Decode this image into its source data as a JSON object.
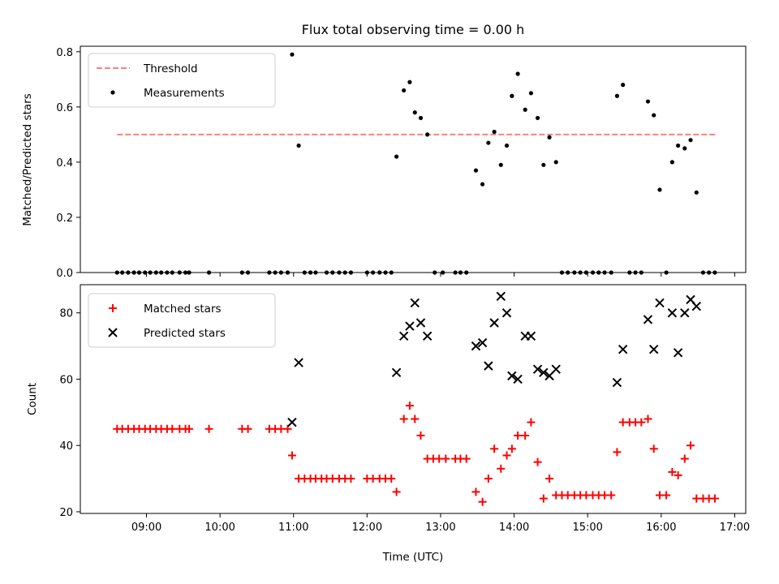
{
  "chart_data": [
    {
      "type": "scatter",
      "title": "Flux total observing time = 0.00 h",
      "xlabel": "",
      "ylabel": "Matched/Predicted stars",
      "ylim": [
        0,
        0.82
      ],
      "yticks": [
        "0.0",
        "0.2",
        "0.4",
        "0.6",
        "0.8"
      ],
      "xticks": [
        "09:00",
        "10:00",
        "11:00",
        "12:00",
        "13:00",
        "14:00",
        "15:00",
        "16:00",
        "17:00"
      ],
      "xlim_hours": [
        8.1,
        17.15
      ],
      "legend_position": "upper-left",
      "threshold": {
        "name": "Threshold",
        "value": 0.5,
        "x_start": 8.6,
        "x_end": 16.75,
        "color": "#ff7f7f"
      },
      "series": [
        {
          "name": "Measurements",
          "color": "#000000",
          "marker": "dot",
          "points": [
            [
              8.6,
              0
            ],
            [
              8.67,
              0
            ],
            [
              8.75,
              0
            ],
            [
              8.83,
              0
            ],
            [
              8.9,
              0
            ],
            [
              8.98,
              0
            ],
            [
              9.05,
              0
            ],
            [
              9.13,
              0
            ],
            [
              9.2,
              0
            ],
            [
              9.28,
              0
            ],
            [
              9.35,
              0
            ],
            [
              9.45,
              0
            ],
            [
              9.53,
              0
            ],
            [
              9.58,
              0
            ],
            [
              9.85,
              0
            ],
            [
              10.3,
              0
            ],
            [
              10.38,
              0
            ],
            [
              10.67,
              0
            ],
            [
              10.75,
              0
            ],
            [
              10.83,
              0
            ],
            [
              10.92,
              0
            ],
            [
              10.98,
              0.79
            ],
            [
              11.07,
              0.46
            ],
            [
              11.15,
              0
            ],
            [
              11.23,
              0
            ],
            [
              11.3,
              0
            ],
            [
              11.45,
              0
            ],
            [
              11.53,
              0
            ],
            [
              11.62,
              0
            ],
            [
              11.7,
              0
            ],
            [
              11.78,
              0
            ],
            [
              12.0,
              0
            ],
            [
              12.08,
              0
            ],
            [
              12.17,
              0
            ],
            [
              12.25,
              0
            ],
            [
              12.33,
              0
            ],
            [
              12.4,
              0.42
            ],
            [
              12.5,
              0.66
            ],
            [
              12.58,
              0.69
            ],
            [
              12.65,
              0.58
            ],
            [
              12.73,
              0.56
            ],
            [
              12.82,
              0.5
            ],
            [
              12.92,
              0
            ],
            [
              13.03,
              0
            ],
            [
              13.2,
              0
            ],
            [
              13.27,
              0
            ],
            [
              13.35,
              0
            ],
            [
              13.48,
              0.37
            ],
            [
              13.57,
              0.32
            ],
            [
              13.65,
              0.47
            ],
            [
              13.73,
              0.51
            ],
            [
              13.82,
              0.39
            ],
            [
              13.9,
              0.46
            ],
            [
              13.97,
              0.64
            ],
            [
              14.05,
              0.72
            ],
            [
              14.15,
              0.59
            ],
            [
              14.23,
              0.65
            ],
            [
              14.32,
              0.56
            ],
            [
              14.4,
              0.39
            ],
            [
              14.48,
              0.49
            ],
            [
              14.57,
              0.4
            ],
            [
              14.65,
              0
            ],
            [
              14.73,
              0
            ],
            [
              14.82,
              0
            ],
            [
              14.9,
              0
            ],
            [
              14.98,
              0
            ],
            [
              15.07,
              0
            ],
            [
              15.15,
              0
            ],
            [
              15.23,
              0
            ],
            [
              15.32,
              0
            ],
            [
              15.4,
              0.64
            ],
            [
              15.48,
              0.68
            ],
            [
              15.57,
              0
            ],
            [
              15.65,
              0
            ],
            [
              15.73,
              0
            ],
            [
              15.82,
              0.62
            ],
            [
              15.9,
              0.57
            ],
            [
              15.98,
              0.3
            ],
            [
              16.07,
              0
            ],
            [
              16.15,
              0.4
            ],
            [
              16.23,
              0.46
            ],
            [
              16.32,
              0.45
            ],
            [
              16.4,
              0.48
            ],
            [
              16.48,
              0.29
            ],
            [
              16.57,
              0
            ],
            [
              16.65,
              0
            ],
            [
              16.73,
              0
            ]
          ]
        }
      ]
    },
    {
      "type": "scatter",
      "title": "",
      "xlabel": "Time (UTC)",
      "ylabel": "Count",
      "ylim": [
        19.5,
        88.5
      ],
      "yticks": [
        "20",
        "40",
        "60",
        "80"
      ],
      "xticks": [
        "09:00",
        "10:00",
        "11:00",
        "12:00",
        "13:00",
        "14:00",
        "15:00",
        "16:00",
        "17:00"
      ],
      "xlim_hours": [
        8.1,
        17.15
      ],
      "legend_position": "upper-left",
      "series": [
        {
          "name": "Matched stars",
          "color": "#ff0000",
          "marker": "plus",
          "points": [
            [
              8.6,
              45
            ],
            [
              8.67,
              45
            ],
            [
              8.75,
              45
            ],
            [
              8.83,
              45
            ],
            [
              8.9,
              45
            ],
            [
              8.98,
              45
            ],
            [
              9.05,
              45
            ],
            [
              9.13,
              45
            ],
            [
              9.2,
              45
            ],
            [
              9.28,
              45
            ],
            [
              9.35,
              45
            ],
            [
              9.45,
              45
            ],
            [
              9.53,
              45
            ],
            [
              9.58,
              45
            ],
            [
              9.85,
              45
            ],
            [
              10.3,
              45
            ],
            [
              10.38,
              45
            ],
            [
              10.67,
              45
            ],
            [
              10.75,
              45
            ],
            [
              10.83,
              45
            ],
            [
              10.92,
              45
            ],
            [
              10.98,
              37
            ],
            [
              11.07,
              30
            ],
            [
              11.15,
              30
            ],
            [
              11.23,
              30
            ],
            [
              11.3,
              30
            ],
            [
              11.38,
              30
            ],
            [
              11.45,
              30
            ],
            [
              11.53,
              30
            ],
            [
              11.62,
              30
            ],
            [
              11.7,
              30
            ],
            [
              11.78,
              30
            ],
            [
              12.0,
              30
            ],
            [
              12.08,
              30
            ],
            [
              12.17,
              30
            ],
            [
              12.25,
              30
            ],
            [
              12.33,
              30
            ],
            [
              12.4,
              26
            ],
            [
              12.5,
              48
            ],
            [
              12.58,
              52
            ],
            [
              12.65,
              48
            ],
            [
              12.73,
              43
            ],
            [
              12.82,
              36
            ],
            [
              12.9,
              36
            ],
            [
              12.98,
              36
            ],
            [
              13.07,
              36
            ],
            [
              13.2,
              36
            ],
            [
              13.27,
              36
            ],
            [
              13.35,
              36
            ],
            [
              13.48,
              26
            ],
            [
              13.57,
              23
            ],
            [
              13.65,
              30
            ],
            [
              13.73,
              39
            ],
            [
              13.82,
              33
            ],
            [
              13.9,
              37
            ],
            [
              13.97,
              39
            ],
            [
              14.05,
              43
            ],
            [
              14.15,
              43
            ],
            [
              14.23,
              47
            ],
            [
              14.32,
              35
            ],
            [
              14.4,
              24
            ],
            [
              14.48,
              30
            ],
            [
              14.57,
              25
            ],
            [
              14.65,
              25
            ],
            [
              14.73,
              25
            ],
            [
              14.82,
              25
            ],
            [
              14.9,
              25
            ],
            [
              14.98,
              25
            ],
            [
              15.07,
              25
            ],
            [
              15.15,
              25
            ],
            [
              15.23,
              25
            ],
            [
              15.32,
              25
            ],
            [
              15.4,
              38
            ],
            [
              15.48,
              47
            ],
            [
              15.57,
              47
            ],
            [
              15.65,
              47
            ],
            [
              15.73,
              47
            ],
            [
              15.82,
              48
            ],
            [
              15.9,
              39
            ],
            [
              15.98,
              25
            ],
            [
              16.07,
              25
            ],
            [
              16.15,
              32
            ],
            [
              16.23,
              31
            ],
            [
              16.32,
              36
            ],
            [
              16.4,
              40
            ],
            [
              16.48,
              24
            ],
            [
              16.57,
              24
            ],
            [
              16.65,
              24
            ],
            [
              16.73,
              24
            ]
          ]
        },
        {
          "name": "Predicted stars",
          "color": "#000000",
          "marker": "x",
          "points": [
            [
              10.98,
              47
            ],
            [
              11.07,
              65
            ],
            [
              12.4,
              62
            ],
            [
              12.5,
              73
            ],
            [
              12.58,
              76
            ],
            [
              12.65,
              83
            ],
            [
              12.73,
              77
            ],
            [
              12.82,
              73
            ],
            [
              13.48,
              70
            ],
            [
              13.57,
              71
            ],
            [
              13.65,
              64
            ],
            [
              13.73,
              77
            ],
            [
              13.82,
              85
            ],
            [
              13.9,
              80
            ],
            [
              13.97,
              61
            ],
            [
              14.05,
              60
            ],
            [
              14.15,
              73
            ],
            [
              14.23,
              73
            ],
            [
              14.32,
              63
            ],
            [
              14.4,
              62
            ],
            [
              14.48,
              61
            ],
            [
              14.57,
              63
            ],
            [
              15.4,
              59
            ],
            [
              15.48,
              69
            ],
            [
              15.82,
              78
            ],
            [
              15.9,
              69
            ],
            [
              15.98,
              83
            ],
            [
              16.15,
              80
            ],
            [
              16.23,
              68
            ],
            [
              16.32,
              80
            ],
            [
              16.4,
              84
            ],
            [
              16.48,
              82
            ]
          ]
        }
      ]
    }
  ]
}
